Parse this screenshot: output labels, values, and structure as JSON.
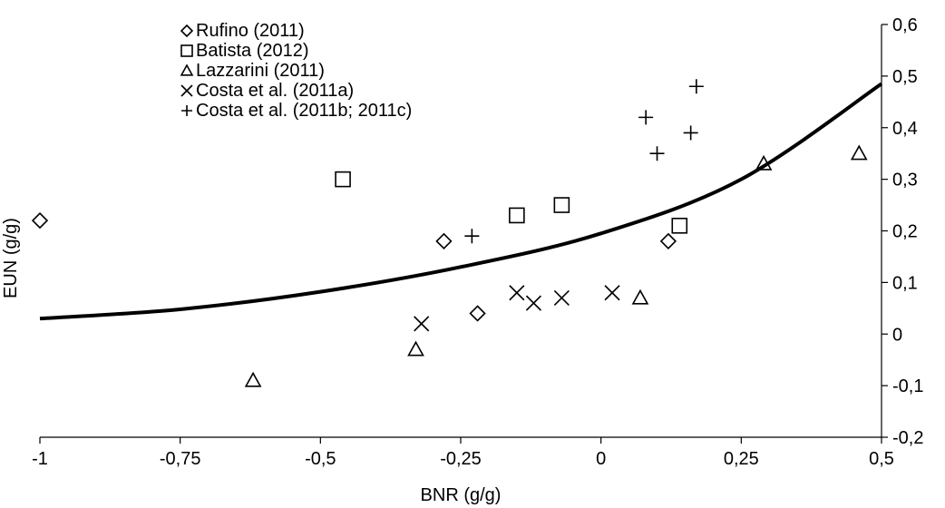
{
  "chart_data": {
    "type": "scatter",
    "xlabel": "BNR (g/g)",
    "ylabel": "EUN (g/g)",
    "xlim": [
      -1,
      0.5
    ],
    "ylim": [
      -0.2,
      0.6
    ],
    "x_ticks": [
      {
        "value": -1,
        "label": "-1"
      },
      {
        "value": -0.75,
        "label": "-0,75"
      },
      {
        "value": -0.5,
        "label": "-0,5"
      },
      {
        "value": -0.25,
        "label": "-0,25"
      },
      {
        "value": 0,
        "label": "0"
      },
      {
        "value": 0.25,
        "label": "0,25"
      },
      {
        "value": 0.5,
        "label": "0,5"
      }
    ],
    "y_ticks": [
      {
        "value": -0.2,
        "label": "-0,2"
      },
      {
        "value": -0.1,
        "label": "-0,1"
      },
      {
        "value": 0,
        "label": "0"
      },
      {
        "value": 0.1,
        "label": "0,1"
      },
      {
        "value": 0.2,
        "label": "0,2"
      },
      {
        "value": 0.3,
        "label": "0,3"
      },
      {
        "value": 0.4,
        "label": "0,4"
      },
      {
        "value": 0.5,
        "label": "0,5"
      },
      {
        "value": 0.6,
        "label": "0,6"
      }
    ],
    "y_axis_position": "right",
    "grid": false,
    "legend_position": "top-left",
    "series": [
      {
        "name": "Rufino (2011)",
        "marker": "diamond",
        "points": [
          [
            -1.0,
            0.22
          ],
          [
            -0.28,
            0.18
          ],
          [
            -0.22,
            0.04
          ],
          [
            0.12,
            0.18
          ]
        ]
      },
      {
        "name": "Batista (2012)",
        "marker": "square",
        "points": [
          [
            -0.46,
            0.3
          ],
          [
            -0.15,
            0.23
          ],
          [
            -0.07,
            0.25
          ],
          [
            0.14,
            0.21
          ]
        ]
      },
      {
        "name": "Lazzarini (2011)",
        "marker": "triangle",
        "points": [
          [
            -0.62,
            -0.09
          ],
          [
            -0.33,
            -0.03
          ],
          [
            0.07,
            0.07
          ],
          [
            0.29,
            0.33
          ],
          [
            0.46,
            0.35
          ]
        ]
      },
      {
        "name": "Costa et al. (2011a)",
        "marker": "x",
        "points": [
          [
            -0.32,
            0.02
          ],
          [
            -0.15,
            0.08
          ],
          [
            -0.12,
            0.06
          ],
          [
            -0.07,
            0.07
          ],
          [
            0.02,
            0.08
          ]
        ]
      },
      {
        "name": "Costa et al. (2011b; 2011c)",
        "marker": "plus",
        "points": [
          [
            -0.23,
            0.19
          ],
          [
            0.08,
            0.42
          ],
          [
            0.1,
            0.35
          ],
          [
            0.16,
            0.39
          ],
          [
            0.17,
            0.48
          ]
        ]
      }
    ],
    "fit_curve": {
      "points": [
        [
          -1.0,
          0.03
        ],
        [
          -0.75,
          0.048
        ],
        [
          -0.5,
          0.082
        ],
        [
          -0.25,
          0.13
        ],
        [
          0.0,
          0.195
        ],
        [
          0.25,
          0.3
        ],
        [
          0.5,
          0.485
        ]
      ]
    }
  }
}
